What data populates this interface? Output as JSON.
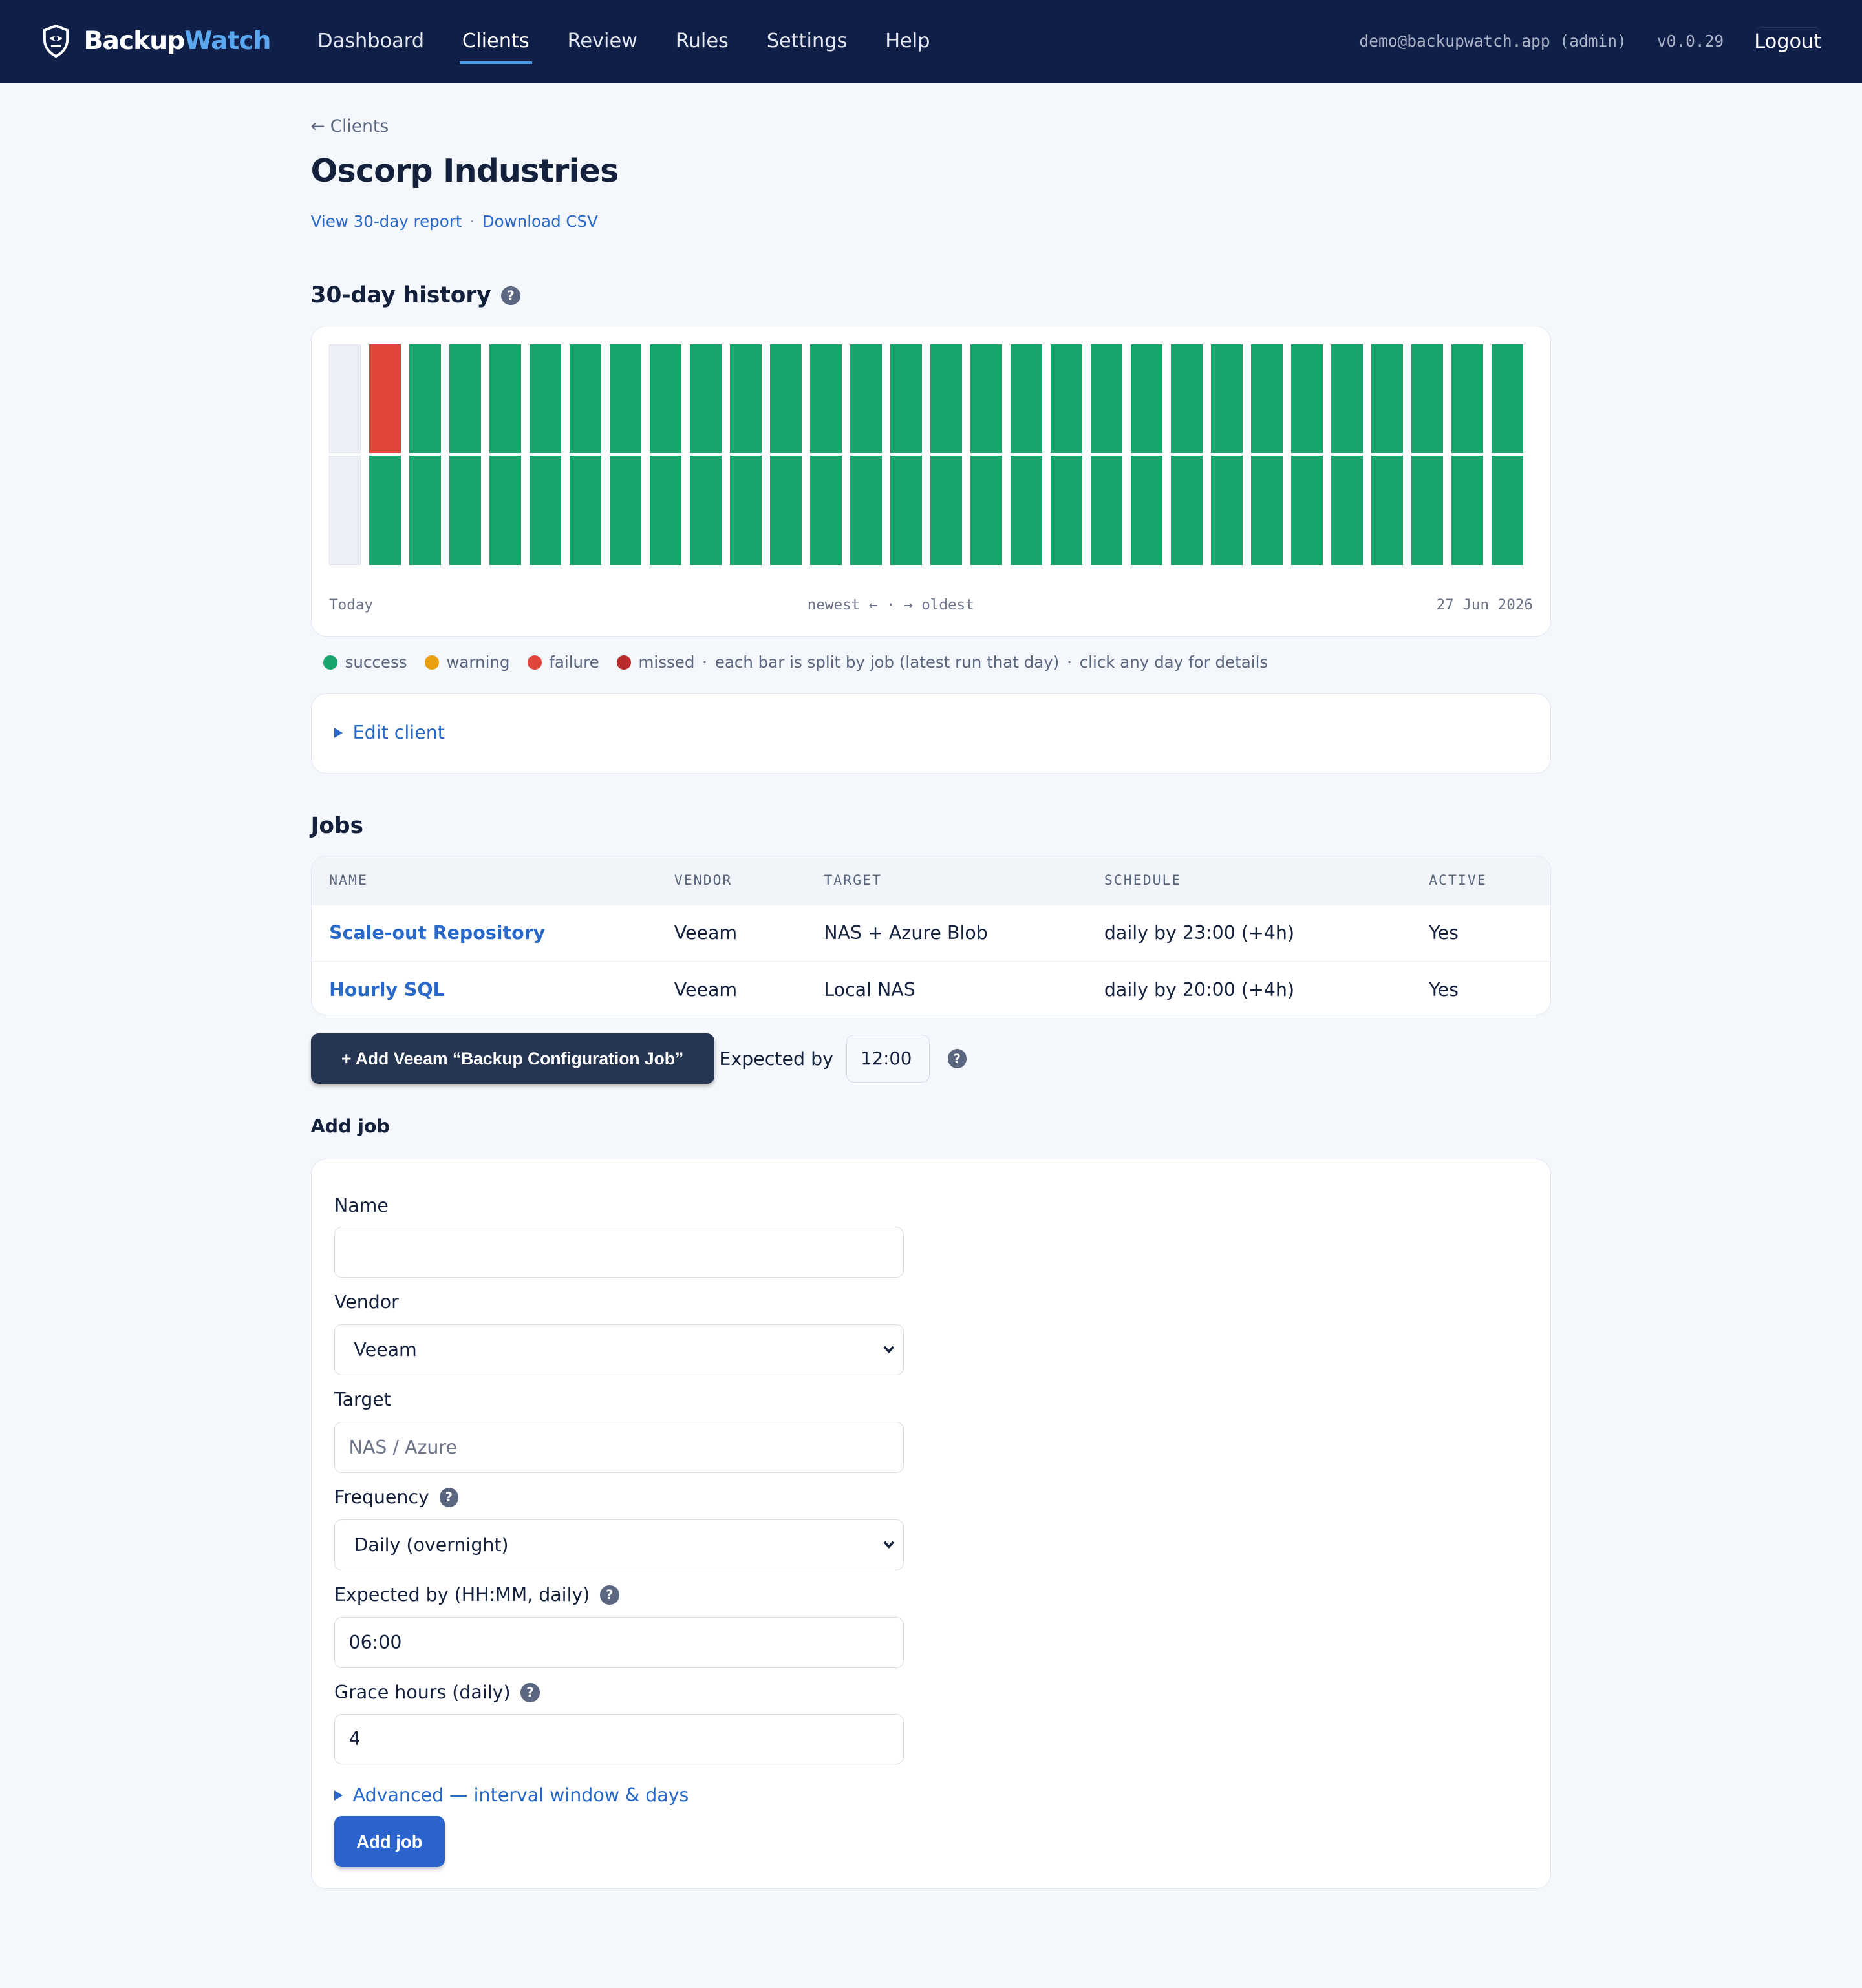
{
  "nav": {
    "brand_part1": "Backup",
    "brand_part2": "Watch",
    "links": [
      "Dashboard",
      "Clients",
      "Review",
      "Rules",
      "Settings",
      "Help"
    ],
    "active": "Clients",
    "user": "demo@backupwatch.app (admin)",
    "version": "v0.0.29",
    "logout": "Logout"
  },
  "page": {
    "back": "Clients",
    "title": "Oscorp Industries",
    "report_link": "View 30-day report",
    "csv_link": "Download CSV"
  },
  "history": {
    "heading": "30-day history",
    "help": "?",
    "axis_left": "Today",
    "axis_mid": "newest ←  ·  → oldest",
    "axis_right": "27 Jun 2026",
    "days": [
      [
        "none",
        "none"
      ],
      [
        "failure",
        "success"
      ],
      [
        "success",
        "success"
      ],
      [
        "success",
        "success"
      ],
      [
        "success",
        "success"
      ],
      [
        "success",
        "success"
      ],
      [
        "success",
        "success"
      ],
      [
        "success",
        "success"
      ],
      [
        "success",
        "success"
      ],
      [
        "success",
        "success"
      ],
      [
        "success",
        "success"
      ],
      [
        "success",
        "success"
      ],
      [
        "success",
        "success"
      ],
      [
        "success",
        "success"
      ],
      [
        "success",
        "success"
      ],
      [
        "success",
        "success"
      ],
      [
        "success",
        "success"
      ],
      [
        "success",
        "success"
      ],
      [
        "success",
        "success"
      ],
      [
        "success",
        "success"
      ],
      [
        "success",
        "success"
      ],
      [
        "success",
        "success"
      ],
      [
        "success",
        "success"
      ],
      [
        "success",
        "success"
      ],
      [
        "success",
        "success"
      ],
      [
        "success",
        "success"
      ],
      [
        "success",
        "success"
      ],
      [
        "success",
        "success"
      ],
      [
        "success",
        "success"
      ],
      [
        "success",
        "success"
      ]
    ],
    "colors": {
      "success": "#18a46b",
      "warning": "#e9a00c",
      "failure": "#e2453c",
      "missed": "#b92a2a",
      "none": "#edf1f7"
    }
  },
  "legend": {
    "items": [
      {
        "label": "success",
        "color": "#18a46b"
      },
      {
        "label": "warning",
        "color": "#e9a00c"
      },
      {
        "label": "failure",
        "color": "#e2453c"
      },
      {
        "label": "missed",
        "color": "#b92a2a"
      }
    ],
    "note1": "each bar is split by job (latest run that day)",
    "note2": "click any day for details"
  },
  "edit_client": "Edit client",
  "jobs": {
    "heading": "Jobs",
    "columns": [
      "NAME",
      "VENDOR",
      "TARGET",
      "SCHEDULE",
      "ACTIVE"
    ],
    "rows": [
      [
        "Scale-out Repository",
        "Veeam",
        "NAS + Azure Blob",
        "daily by 23:00 (+4h)",
        "Yes"
      ],
      [
        "Hourly SQL",
        "Veeam",
        "Local NAS",
        "daily by 20:00 (+4h)",
        "Yes"
      ]
    ]
  },
  "veeam": {
    "button": "+ Add Veeam “Backup Configuration Job”",
    "expected_label": "Expected by",
    "expected_value": "12:00"
  },
  "add_job": {
    "heading": "Add job",
    "name_label": "Name",
    "name_value": "",
    "vendor_label": "Vendor",
    "vendor_value": "Veeam",
    "target_label": "Target",
    "target_placeholder": "NAS / Azure",
    "frequency_label": "Frequency",
    "frequency_value": "Daily (overnight)",
    "expected_label": "Expected by (HH:MM, daily)",
    "expected_value": "06:00",
    "grace_label": "Grace hours (daily)",
    "grace_value": "4",
    "advanced": "Advanced — interval window & days",
    "submit": "Add job"
  }
}
